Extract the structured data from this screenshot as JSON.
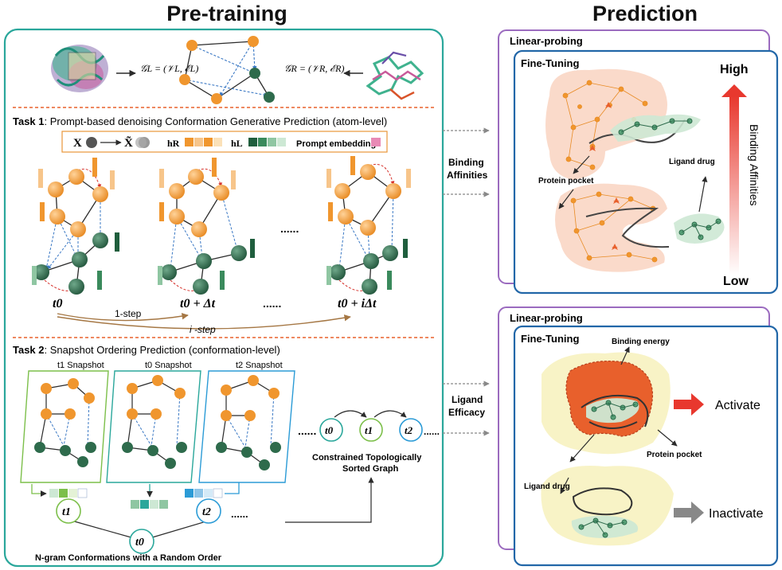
{
  "headers": {
    "pretraining": "Pre-training",
    "prediction": "Prediction"
  },
  "top_graph": {
    "graph_ligand": "𝒢L = (𝒱L, ℰL)",
    "graph_receptor": "𝒢R = (𝒱R, ℰR)"
  },
  "task1": {
    "prefix": "Task 1",
    "title": ":   Prompt-based denoising Conformation Generative Prediction (atom-level)",
    "legend": {
      "x": "X",
      "x_noisy": "X̃",
      "h_r": "hR",
      "h_l": "hL",
      "prompt": "Prompt embedding"
    },
    "time_labels": [
      "t0",
      "t0 + Δt",
      "t0 + iΔt"
    ],
    "ellipsis": "......",
    "step1": "1-step",
    "stepi": "i -step"
  },
  "task2": {
    "prefix": "Task 2",
    "title": ":  Snapshot Ordering Prediction (conformation-level)",
    "snapshots": [
      "t1 Snapshot",
      "t0 Snapshot",
      "t2 Snapshot"
    ],
    "sorted_graph": [
      "Constrained Topologically",
      "Sorted Graph"
    ],
    "ngram": "N-gram Conformations with a Random Order",
    "chain": [
      "t0",
      "t1",
      "t2"
    ],
    "bottom_nodes": [
      "t1",
      "t0",
      "t2"
    ],
    "ellipsis": "......"
  },
  "connectors": {
    "binding": [
      "Binding",
      "Affinities"
    ],
    "efficacy": [
      "Ligand",
      "Efficacy"
    ]
  },
  "panel1": {
    "outer": "Linear-probing",
    "inner": "Fine-Tuning",
    "high": "High",
    "low": "Low",
    "axis": "Binding Affinities",
    "protein_pocket": "Protein pocket",
    "ligand_drug": "Ligand drug"
  },
  "panel2": {
    "outer": "Linear-probing",
    "inner": "Fine-Tuning",
    "binding_energy": "Binding energy",
    "activate": "Activate",
    "inactivate": "Inactivate",
    "protein_pocket": "Protein pocket",
    "ligand_drug": "Ligand drug"
  },
  "colors": {
    "teal_frame": "#2aa79b",
    "purple_frame": "#9b6bbf",
    "blue_frame": "#2267a8",
    "orange_node": "#f0962e",
    "green_node": "#2e6b4c",
    "red_arrow": "#e8403a",
    "gray_arrow": "#888888"
  }
}
